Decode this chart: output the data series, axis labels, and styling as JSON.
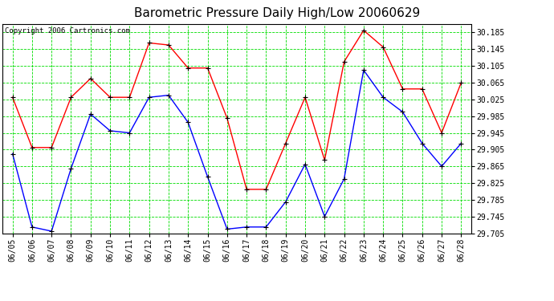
{
  "title": "Barometric Pressure Daily High/Low 20060629",
  "copyright_text": "Copyright 2006 Cartronics.com",
  "dates": [
    "06/05",
    "06/06",
    "06/07",
    "06/08",
    "06/09",
    "06/10",
    "06/11",
    "06/12",
    "06/13",
    "06/14",
    "06/15",
    "06/16",
    "06/17",
    "06/18",
    "06/19",
    "06/20",
    "06/21",
    "06/22",
    "06/23",
    "06/24",
    "06/25",
    "06/26",
    "06/27",
    "06/28"
  ],
  "high_values": [
    30.03,
    29.91,
    29.91,
    30.03,
    30.075,
    30.03,
    30.03,
    30.16,
    30.155,
    30.1,
    30.1,
    29.98,
    29.81,
    29.81,
    29.92,
    30.03,
    29.88,
    30.115,
    30.19,
    30.15,
    30.05,
    30.05,
    29.945,
    30.065
  ],
  "low_values": [
    29.895,
    29.72,
    29.71,
    29.86,
    29.99,
    29.95,
    29.945,
    30.03,
    30.035,
    29.97,
    29.84,
    29.715,
    29.72,
    29.72,
    29.78,
    29.87,
    29.745,
    29.835,
    30.095,
    30.03,
    29.995,
    29.92,
    29.865,
    29.92
  ],
  "high_color": "#FF0000",
  "low_color": "#0000FF",
  "bg_color": "#FFFFFF",
  "grid_color": "#00DD00",
  "ylim_min": 29.705,
  "ylim_max": 30.205,
  "yticks": [
    29.705,
    29.745,
    29.785,
    29.825,
    29.865,
    29.905,
    29.945,
    29.985,
    30.025,
    30.065,
    30.105,
    30.145,
    30.185
  ],
  "title_fontsize": 11,
  "tick_fontsize": 7,
  "copyright_fontsize": 6.5,
  "line_width": 1.0,
  "marker_size": 4
}
